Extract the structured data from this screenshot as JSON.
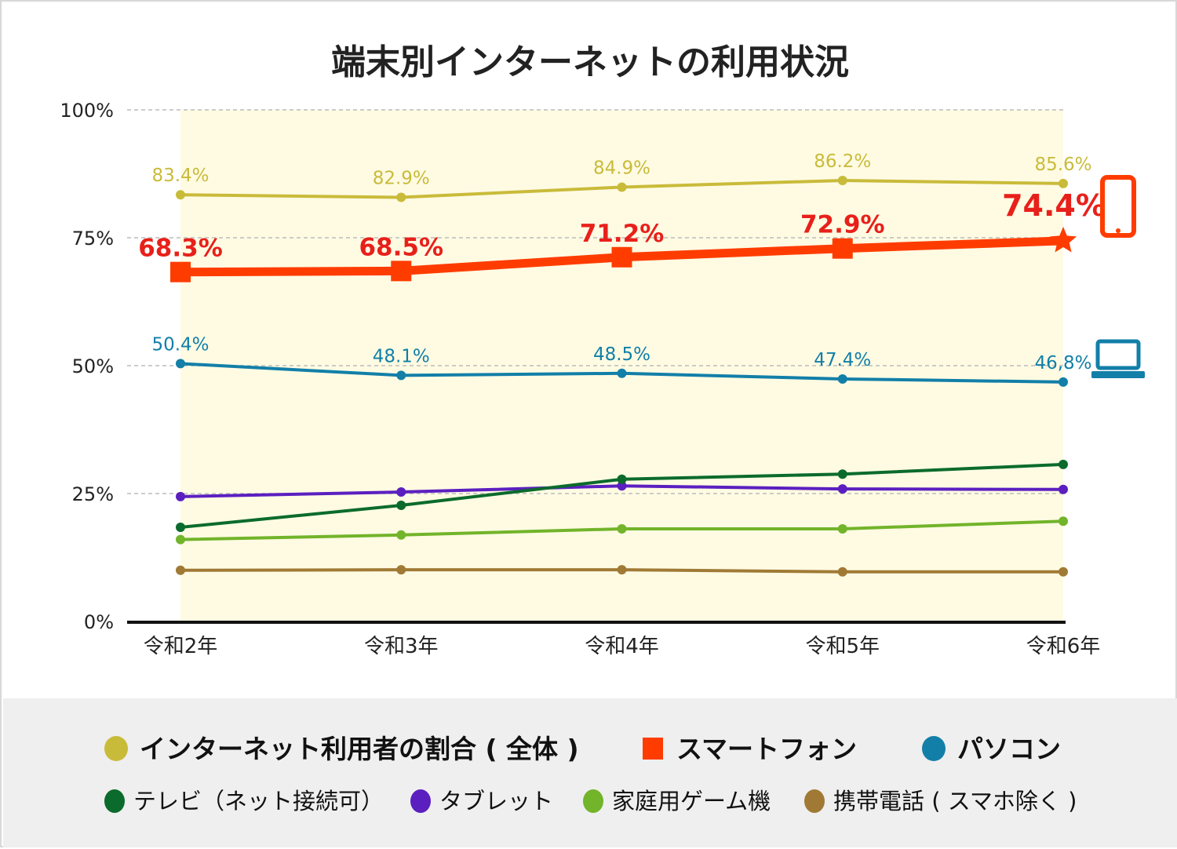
{
  "chart_data": {
    "type": "line",
    "title": "端末別インターネットの利用状況",
    "categories": [
      "令和2年",
      "令和3年",
      "令和4年",
      "令和5年",
      "令和6年"
    ],
    "ylim": [
      0,
      100
    ],
    "yticks": [
      "0%",
      "25%",
      "50%",
      "75%",
      "100%"
    ],
    "ytick_values": [
      0,
      25,
      50,
      75,
      100
    ],
    "grid": true,
    "legend_placement": "bottom",
    "series": [
      {
        "name": "インターネット利用者の割合(全体)",
        "color": "#c9bb3a",
        "values": [
          83.4,
          82.9,
          84.9,
          86.2,
          85.6
        ],
        "labels": [
          "83.4%",
          "82.9%",
          "84.9%",
          "86.2%",
          "85.6%"
        ],
        "marker": "circle"
      },
      {
        "name": "スマートフォン",
        "color": "#ff3c00",
        "label_color": "#e8201a",
        "values": [
          68.3,
          68.5,
          71.2,
          72.9,
          74.4
        ],
        "labels": [
          "68.3%",
          "68.5%",
          "71.2%",
          "72.9%",
          "74.4%"
        ],
        "marker": "square",
        "icon": "smartphone-icon"
      },
      {
        "name": "パソコン",
        "color": "#127fa8",
        "values": [
          50.4,
          48.1,
          48.5,
          47.4,
          46.8
        ],
        "labels": [
          "50.4%",
          "48.1%",
          "48.5%",
          "47.4%",
          "46,8%"
        ],
        "marker": "circle",
        "icon": "laptop-icon"
      },
      {
        "name": "テレビ(ネット接続可)",
        "color": "#0b6b2c",
        "values": [
          18.4,
          22.7,
          27.8,
          28.8,
          30.7
        ],
        "marker": "circle"
      },
      {
        "name": "タブレット",
        "color": "#5b1fc0",
        "values": [
          24.4,
          25.3,
          26.5,
          25.9,
          25.8
        ],
        "marker": "circle"
      },
      {
        "name": "家庭用ゲーム機",
        "color": "#72b42a",
        "values": [
          16.0,
          16.9,
          18.1,
          18.1,
          19.6
        ],
        "marker": "circle"
      },
      {
        "name": "携帯電話(スマホ除く)",
        "color": "#a07a35",
        "values": [
          10.0,
          10.1,
          10.1,
          9.7,
          9.7
        ],
        "marker": "circle"
      }
    ],
    "legend_rows": [
      [
        "インターネット利用者の割合 ( 全体 )",
        "スマートフォン",
        "パソコン"
      ],
      [
        "テレビ（ネット接続可）",
        "タブレット",
        "家庭用ゲーム機",
        "携帯電話 ( スマホ除く )"
      ]
    ],
    "plot_background": "#fffbe3",
    "legend_background": "#efefef"
  }
}
